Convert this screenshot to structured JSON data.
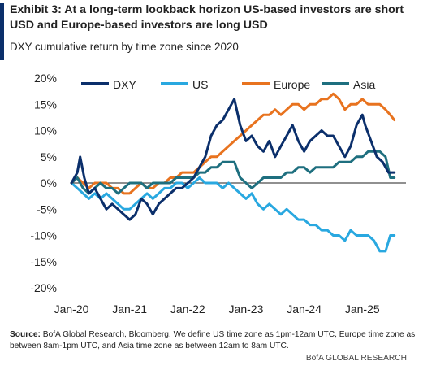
{
  "header": {
    "title": "Exhibit 3: At a long-term lookback horizon US-based investors are short USD and Europe-based investors are long USD",
    "subtitle": "DXY cumulative return by time zone since 2020"
  },
  "footer": {
    "source_label": "Source:",
    "source_text": " BofA Global Research, Bloomberg. We define US time zone as 1pm-12am UTC, Europe time zone as between 8am-1pm UTC, and Asia time zone as between 12am to 8am UTC.",
    "credit": "BofA GLOBAL RESEARCH"
  },
  "chart_data": {
    "type": "line",
    "ylim": [
      -20,
      20
    ],
    "xlim": [
      2020.0,
      2025.75
    ],
    "y_ticks": [
      "20%",
      "15%",
      "10%",
      "5%",
      "0%",
      "-5%",
      "-10%",
      "-15%",
      "-20%"
    ],
    "y_tick_values": [
      20,
      15,
      10,
      5,
      0,
      -5,
      -10,
      -15,
      -20
    ],
    "x_ticks": [
      "Jan-20",
      "Jan-21",
      "Jan-22",
      "Jan-23",
      "Jan-24",
      "Jan-25"
    ],
    "x_tick_values": [
      2020,
      2021,
      2022,
      2023,
      2024,
      2025
    ],
    "legend_position": "top",
    "series": [
      {
        "name": "DXY",
        "color": "#0b2f6b",
        "points": [
          [
            2020.0,
            0
          ],
          [
            2020.1,
            2
          ],
          [
            2020.15,
            5
          ],
          [
            2020.22,
            1
          ],
          [
            2020.3,
            -2
          ],
          [
            2020.4,
            -1
          ],
          [
            2020.5,
            -3
          ],
          [
            2020.6,
            -5
          ],
          [
            2020.7,
            -4
          ],
          [
            2020.8,
            -5
          ],
          [
            2020.9,
            -6
          ],
          [
            2021.0,
            -7
          ],
          [
            2021.1,
            -6
          ],
          [
            2021.2,
            -3
          ],
          [
            2021.3,
            -4
          ],
          [
            2021.4,
            -6
          ],
          [
            2021.5,
            -4
          ],
          [
            2021.6,
            -3
          ],
          [
            2021.7,
            -2
          ],
          [
            2021.8,
            -1
          ],
          [
            2021.9,
            -1
          ],
          [
            2022.0,
            0
          ],
          [
            2022.1,
            1
          ],
          [
            2022.2,
            3
          ],
          [
            2022.3,
            5
          ],
          [
            2022.4,
            9
          ],
          [
            2022.5,
            11
          ],
          [
            2022.6,
            12
          ],
          [
            2022.7,
            14
          ],
          [
            2022.8,
            16
          ],
          [
            2022.9,
            11
          ],
          [
            2023.0,
            8
          ],
          [
            2023.1,
            9
          ],
          [
            2023.2,
            7
          ],
          [
            2023.3,
            6
          ],
          [
            2023.4,
            8
          ],
          [
            2023.5,
            5
          ],
          [
            2023.6,
            7
          ],
          [
            2023.7,
            9
          ],
          [
            2023.8,
            11
          ],
          [
            2023.9,
            8
          ],
          [
            2024.0,
            6
          ],
          [
            2024.1,
            8
          ],
          [
            2024.2,
            9
          ],
          [
            2024.3,
            10
          ],
          [
            2024.4,
            9
          ],
          [
            2024.5,
            9
          ],
          [
            2024.6,
            7
          ],
          [
            2024.7,
            5
          ],
          [
            2024.8,
            7
          ],
          [
            2024.9,
            11
          ],
          [
            2025.0,
            13
          ],
          [
            2025.05,
            11
          ],
          [
            2025.15,
            8
          ],
          [
            2025.25,
            5
          ],
          [
            2025.35,
            4
          ],
          [
            2025.45,
            2
          ],
          [
            2025.55,
            2
          ]
        ]
      },
      {
        "name": "US",
        "color": "#29a8e0",
        "points": [
          [
            2020.0,
            0
          ],
          [
            2020.1,
            -1
          ],
          [
            2020.2,
            -2
          ],
          [
            2020.3,
            -3
          ],
          [
            2020.4,
            -2
          ],
          [
            2020.5,
            -3
          ],
          [
            2020.6,
            -2
          ],
          [
            2020.7,
            -3
          ],
          [
            2020.8,
            -4
          ],
          [
            2020.9,
            -5
          ],
          [
            2021.0,
            -5
          ],
          [
            2021.1,
            -4
          ],
          [
            2021.2,
            -3
          ],
          [
            2021.3,
            -2
          ],
          [
            2021.4,
            -3
          ],
          [
            2021.5,
            -2
          ],
          [
            2021.6,
            -1
          ],
          [
            2021.7,
            -1
          ],
          [
            2021.8,
            0
          ],
          [
            2021.9,
            0
          ],
          [
            2022.0,
            -1
          ],
          [
            2022.1,
            0
          ],
          [
            2022.2,
            1
          ],
          [
            2022.3,
            0
          ],
          [
            2022.4,
            0
          ],
          [
            2022.5,
            0
          ],
          [
            2022.6,
            -1
          ],
          [
            2022.7,
            0
          ],
          [
            2022.8,
            -1
          ],
          [
            2022.9,
            -2
          ],
          [
            2023.0,
            -3
          ],
          [
            2023.1,
            -2
          ],
          [
            2023.2,
            -4
          ],
          [
            2023.3,
            -5
          ],
          [
            2023.4,
            -4
          ],
          [
            2023.5,
            -5
          ],
          [
            2023.6,
            -6
          ],
          [
            2023.7,
            -5
          ],
          [
            2023.8,
            -6
          ],
          [
            2023.9,
            -7
          ],
          [
            2024.0,
            -7
          ],
          [
            2024.1,
            -8
          ],
          [
            2024.2,
            -8
          ],
          [
            2024.3,
            -9
          ],
          [
            2024.4,
            -9
          ],
          [
            2024.5,
            -10
          ],
          [
            2024.6,
            -10
          ],
          [
            2024.7,
            -11
          ],
          [
            2024.8,
            -9
          ],
          [
            2024.9,
            -10
          ],
          [
            2025.0,
            -10
          ],
          [
            2025.1,
            -10
          ],
          [
            2025.2,
            -11
          ],
          [
            2025.3,
            -13
          ],
          [
            2025.4,
            -13
          ],
          [
            2025.48,
            -10
          ],
          [
            2025.55,
            -10
          ]
        ]
      },
      {
        "name": "Europe",
        "color": "#e8731f",
        "points": [
          [
            2020.0,
            0
          ],
          [
            2020.1,
            1
          ],
          [
            2020.2,
            0
          ],
          [
            2020.3,
            -1
          ],
          [
            2020.4,
            0
          ],
          [
            2020.5,
            0
          ],
          [
            2020.6,
            0
          ],
          [
            2020.7,
            -1
          ],
          [
            2020.8,
            -1
          ],
          [
            2020.9,
            -2
          ],
          [
            2021.0,
            -2
          ],
          [
            2021.1,
            -1
          ],
          [
            2021.2,
            0
          ],
          [
            2021.3,
            -1
          ],
          [
            2021.4,
            -1
          ],
          [
            2021.5,
            0
          ],
          [
            2021.6,
            0
          ],
          [
            2021.7,
            1
          ],
          [
            2021.8,
            1
          ],
          [
            2021.9,
            2
          ],
          [
            2022.0,
            2
          ],
          [
            2022.1,
            2
          ],
          [
            2022.2,
            3
          ],
          [
            2022.3,
            4
          ],
          [
            2022.4,
            5
          ],
          [
            2022.5,
            5
          ],
          [
            2022.6,
            6
          ],
          [
            2022.7,
            7
          ],
          [
            2022.8,
            8
          ],
          [
            2022.9,
            9
          ],
          [
            2023.0,
            10
          ],
          [
            2023.1,
            11
          ],
          [
            2023.2,
            12
          ],
          [
            2023.3,
            13
          ],
          [
            2023.4,
            13
          ],
          [
            2023.5,
            14
          ],
          [
            2023.6,
            13
          ],
          [
            2023.7,
            14
          ],
          [
            2023.8,
            15
          ],
          [
            2023.9,
            15
          ],
          [
            2024.0,
            14
          ],
          [
            2024.1,
            15
          ],
          [
            2024.2,
            15
          ],
          [
            2024.3,
            16
          ],
          [
            2024.4,
            16
          ],
          [
            2024.5,
            17
          ],
          [
            2024.6,
            16
          ],
          [
            2024.7,
            14
          ],
          [
            2024.8,
            15
          ],
          [
            2024.9,
            15
          ],
          [
            2025.0,
            16
          ],
          [
            2025.1,
            15
          ],
          [
            2025.2,
            15
          ],
          [
            2025.3,
            15
          ],
          [
            2025.4,
            14
          ],
          [
            2025.48,
            13
          ],
          [
            2025.55,
            12
          ]
        ]
      },
      {
        "name": "Asia",
        "color": "#1e6f7f",
        "points": [
          [
            2020.0,
            0
          ],
          [
            2020.1,
            1
          ],
          [
            2020.2,
            -1
          ],
          [
            2020.3,
            -2
          ],
          [
            2020.4,
            -1
          ],
          [
            2020.5,
            0
          ],
          [
            2020.6,
            -1
          ],
          [
            2020.7,
            -1
          ],
          [
            2020.8,
            -2
          ],
          [
            2020.9,
            -1
          ],
          [
            2021.0,
            0
          ],
          [
            2021.1,
            0
          ],
          [
            2021.2,
            0
          ],
          [
            2021.3,
            -1
          ],
          [
            2021.4,
            0
          ],
          [
            2021.5,
            0
          ],
          [
            2021.6,
            0
          ],
          [
            2021.7,
            0
          ],
          [
            2021.8,
            1
          ],
          [
            2021.9,
            1
          ],
          [
            2022.0,
            1
          ],
          [
            2022.1,
            1
          ],
          [
            2022.2,
            2
          ],
          [
            2022.3,
            2
          ],
          [
            2022.4,
            3
          ],
          [
            2022.5,
            3
          ],
          [
            2022.6,
            4
          ],
          [
            2022.7,
            4
          ],
          [
            2022.8,
            4
          ],
          [
            2022.9,
            1
          ],
          [
            2023.0,
            0
          ],
          [
            2023.1,
            -1
          ],
          [
            2023.2,
            0
          ],
          [
            2023.3,
            1
          ],
          [
            2023.4,
            1
          ],
          [
            2023.5,
            1
          ],
          [
            2023.6,
            1
          ],
          [
            2023.7,
            2
          ],
          [
            2023.8,
            2
          ],
          [
            2023.9,
            3
          ],
          [
            2024.0,
            3
          ],
          [
            2024.1,
            2
          ],
          [
            2024.2,
            3
          ],
          [
            2024.3,
            3
          ],
          [
            2024.4,
            3
          ],
          [
            2024.5,
            3
          ],
          [
            2024.6,
            4
          ],
          [
            2024.7,
            4
          ],
          [
            2024.8,
            4
          ],
          [
            2024.9,
            5
          ],
          [
            2025.0,
            5
          ],
          [
            2025.1,
            6
          ],
          [
            2025.2,
            6
          ],
          [
            2025.3,
            6
          ],
          [
            2025.4,
            5
          ],
          [
            2025.48,
            1
          ],
          [
            2025.55,
            1
          ]
        ]
      }
    ]
  }
}
